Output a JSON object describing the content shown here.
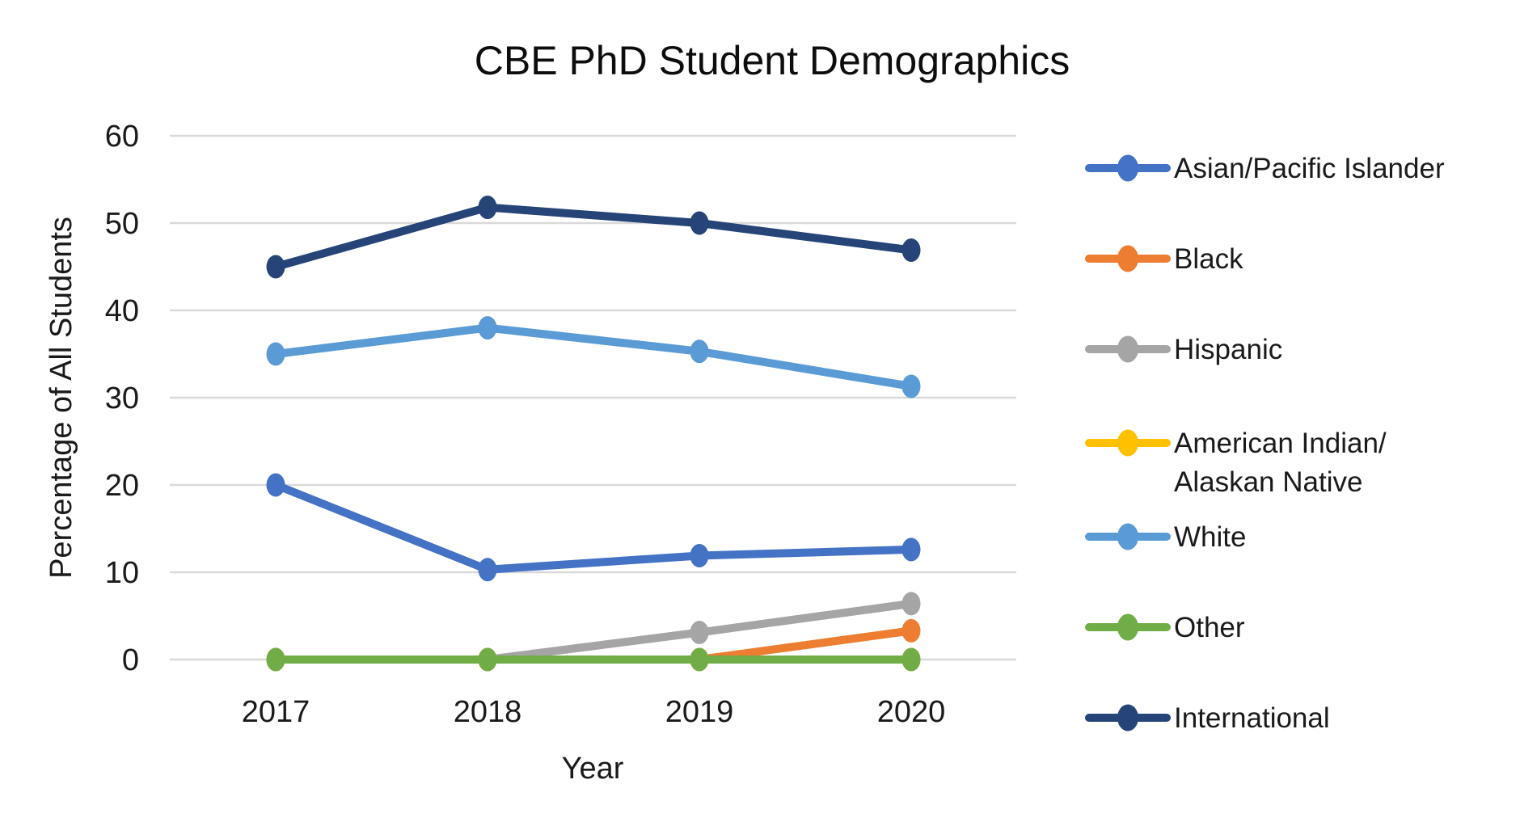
{
  "chart_data": {
    "type": "line",
    "title": "CBE PhD Student Demographics",
    "xlabel": "Year",
    "ylabel": "Percentage of All Students",
    "categories": [
      "2017",
      "2018",
      "2019",
      "2020"
    ],
    "ylim": [
      0,
      60
    ],
    "y_ticks": [
      0,
      10,
      20,
      30,
      40,
      50,
      60
    ],
    "grid": "horizontal-only",
    "legend_position": "right",
    "background": "#ffffff",
    "gridline_color": "#d9d9d9",
    "series": [
      {
        "name": "Asian/Pacific Islander",
        "color": "#4472C4",
        "values": [
          20,
          10.3,
          11.9,
          12.6
        ]
      },
      {
        "name": "Black",
        "color": "#ED7D31",
        "values": [
          0,
          0,
          0,
          3.3
        ]
      },
      {
        "name": "Hispanic",
        "color": "#A5A5A5",
        "values": [
          0,
          0,
          3.1,
          6.4
        ]
      },
      {
        "name": "American Indian/\nAlaskan Native",
        "color": "#FFC000",
        "values": [
          0,
          0,
          0,
          0
        ]
      },
      {
        "name": "White",
        "color": "#5B9BD5",
        "values": [
          35,
          38,
          35.3,
          31.3
        ]
      },
      {
        "name": "Other",
        "color": "#70AD47",
        "values": [
          0,
          0,
          0,
          0
        ]
      },
      {
        "name": "International",
        "color": "#264478",
        "values": [
          45,
          51.8,
          50,
          46.9
        ]
      }
    ]
  }
}
